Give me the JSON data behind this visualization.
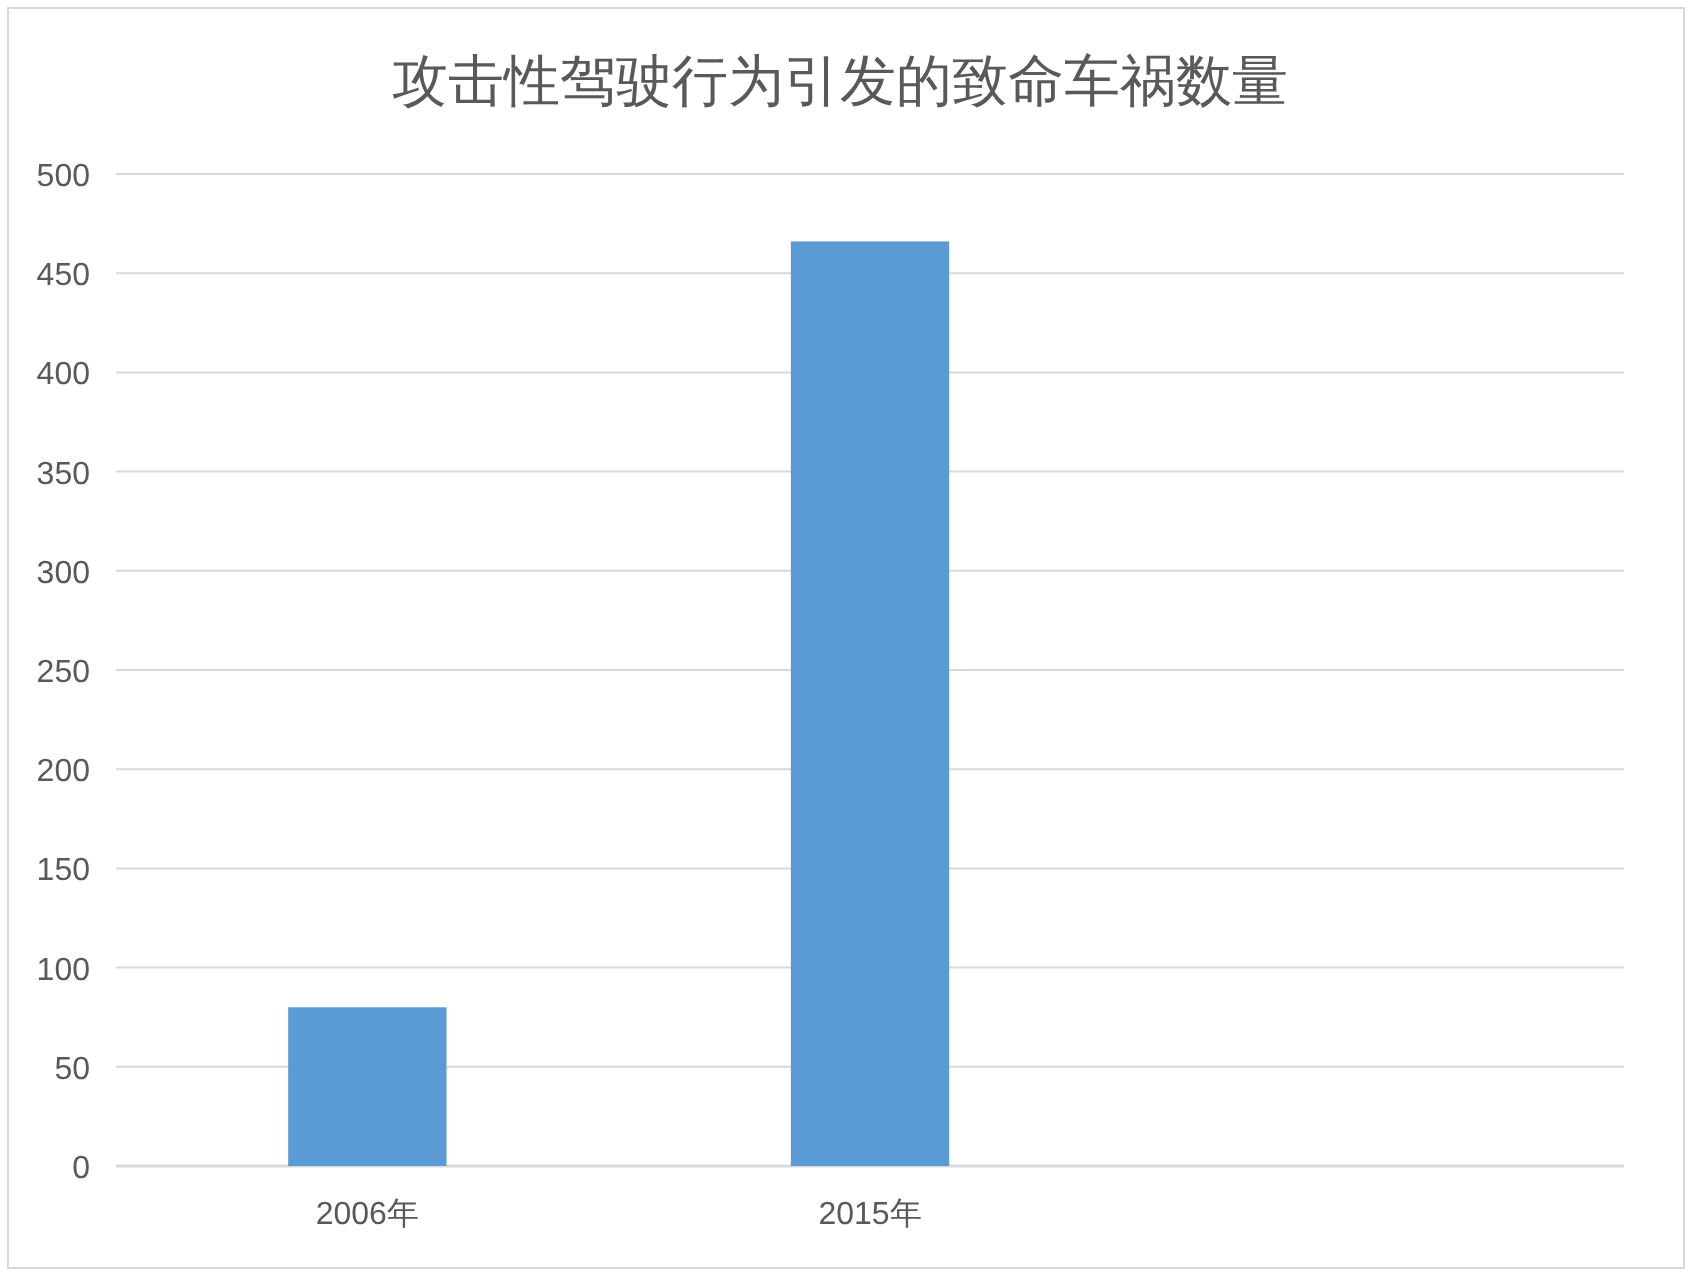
{
  "chart_data": {
    "type": "bar",
    "title": "攻击性驾驶行为引发的致命车祸数量",
    "categories": [
      "2006年",
      "2015年",
      null
    ],
    "values": [
      80,
      466,
      null
    ],
    "color": "#5b9bd5",
    "ylim": [
      0,
      500
    ],
    "yticks": [
      0,
      50,
      100,
      150,
      200,
      250,
      300,
      350,
      400,
      450,
      500
    ],
    "grid": "y"
  }
}
